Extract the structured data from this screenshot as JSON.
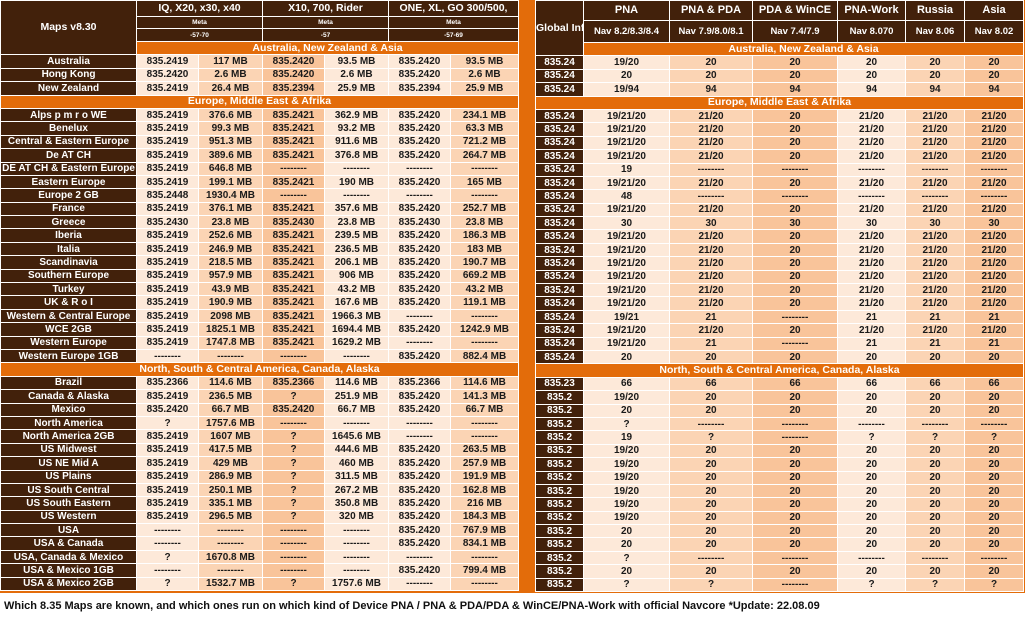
{
  "left": {
    "corner": "Maps v8.30",
    "groups": [
      {
        "title": "IQ, X20, x30, x40",
        "meta": "Meta",
        "ver": "-57-70"
      },
      {
        "title": "X10, 700, Rider",
        "meta": "Meta",
        "ver": "-57"
      },
      {
        "title": "ONE, XL, GO 300/500,",
        "meta": "Meta",
        "ver": "-57-69"
      }
    ],
    "sections": [
      {
        "title": "Australia, New Zealand & Asia",
        "rows": [
          [
            "Australia",
            "835.2419",
            "117 MB",
            "835.2420",
            "93.5 MB",
            "835.2420",
            "93.5 MB"
          ],
          [
            "Hong Kong",
            "835.2420",
            "2.6 MB",
            "835.2420",
            "2.6 MB",
            "835.2420",
            "2.6 MB"
          ],
          [
            "New Zealand",
            "835.2419",
            "26.4 MB",
            "835.2394",
            "25.9 MB",
            "835.2394",
            "25.9 MB"
          ]
        ]
      },
      {
        "title": "Europe, Middle East & Afrika",
        "rows": [
          [
            "Alps p m r o WE",
            "835.2419",
            "376.6 MB",
            "835.2421",
            "362.9 MB",
            "835.2420",
            "234.1 MB"
          ],
          [
            "Benelux",
            "835.2419",
            "99.3 MB",
            "835.2421",
            "93.2 MB",
            "835.2420",
            "63.3 MB"
          ],
          [
            "Central & Eastern Europe",
            "835.2419",
            "951.3 MB",
            "835.2421",
            "911.6 MB",
            "835.2420",
            "721.2 MB"
          ],
          [
            "De AT CH",
            "835.2419",
            "389.6 MB",
            "835.2421",
            "376.8 MB",
            "835.2420",
            "264.7 MB"
          ],
          [
            "DE AT CH & Eastern Europe",
            "835.2419",
            "646.8 MB",
            "--------",
            "--------",
            "--------",
            "--------"
          ],
          [
            "Eastern Europe",
            "835.2419",
            "199.1 MB",
            "835.2421",
            "190 MB",
            "835.2420",
            "165 MB"
          ],
          [
            "Europe 2 GB",
            "835.2448",
            "1930.4 MB",
            "--------",
            "--------",
            "--------",
            "--------"
          ],
          [
            "France",
            "835.2419",
            "376.1 MB",
            "835.2421",
            "357.6 MB",
            "835.2420",
            "252.7 MB"
          ],
          [
            "Greece",
            "835.2430",
            "23.8 MB",
            "835.2430",
            "23.8 MB",
            "835.2430",
            "23.8 MB"
          ],
          [
            "Iberia",
            "835.2419",
            "252.6 MB",
            "835.2421",
            "239.5 MB",
            "835.2420",
            "186.3 MB"
          ],
          [
            "Italia",
            "835.2419",
            "246.9 MB",
            "835.2421",
            "236.5 MB",
            "835.2420",
            "183 MB"
          ],
          [
            "Scandinavia",
            "835.2419",
            "218.5 MB",
            "835.2421",
            "206.1 MB",
            "835.2420",
            "190.7 MB"
          ],
          [
            "Southern Europe",
            "835.2419",
            "957.9 MB",
            "835.2421",
            "906 MB",
            "835.2420",
            "669.2 MB"
          ],
          [
            "Turkey",
            "835.2419",
            "43.9 MB",
            "835.2421",
            "43.2 MB",
            "835.2420",
            "43.2 MB"
          ],
          [
            "UK & R o I",
            "835.2419",
            "190.9 MB",
            "835.2421",
            "167.6 MB",
            "835.2420",
            "119.1 MB"
          ],
          [
            "Western & Central Europe",
            "835.2419",
            "2098 MB",
            "835.2421",
            "1966.3 MB",
            "--------",
            "--------"
          ],
          [
            "WCE 2GB",
            "835.2419",
            "1825.1 MB",
            "835.2421",
            "1694.4 MB",
            "835.2420",
            "1242.9 MB"
          ],
          [
            "Western Europe",
            "835.2419",
            "1747.8 MB",
            "835.2421",
            "1629.2 MB",
            "--------",
            "--------"
          ],
          [
            "Western Europe 1GB",
            "--------",
            "--------",
            "--------",
            "--------",
            "835.2420",
            "882.4 MB"
          ]
        ]
      },
      {
        "title": "North, South & Central America, Canada, Alaska",
        "rows": [
          [
            "Brazil",
            "835.2366",
            "114.6 MB",
            "835.2366",
            "114.6 MB",
            "835.2366",
            "114.6 MB"
          ],
          [
            "Canada & Alaska",
            "835.2419",
            "236.5 MB",
            "?",
            "251.9 MB",
            "835.2420",
            "141.3 MB"
          ],
          [
            "Mexico",
            "835.2420",
            "66.7 MB",
            "835.2420",
            "66.7 MB",
            "835.2420",
            "66.7 MB"
          ],
          [
            "North America",
            "?",
            "1757.6 MB",
            "--------",
            "--------",
            "--------",
            "--------"
          ],
          [
            "North America 2GB",
            "835.2419",
            "1607 MB",
            "?",
            "1645.6 MB",
            "--------",
            "--------"
          ],
          [
            "US Midwest",
            "835.2419",
            "417.5 MB",
            "?",
            "444.6 MB",
            "835.2420",
            "263.5 MB"
          ],
          [
            "US NE Mid A",
            "835.2419",
            "429 MB",
            "?",
            "460 MB",
            "835.2420",
            "257.9 MB"
          ],
          [
            "US Plains",
            "835.2419",
            "286.9 MB",
            "?",
            "311.5 MB",
            "835.2420",
            "191.9 MB"
          ],
          [
            "US South Central",
            "835.2419",
            "250.1 MB",
            "?",
            "267.2 MB",
            "835.2420",
            "162.8 MB"
          ],
          [
            "US South Eastern",
            "835.2419",
            "335.1 MB",
            "?",
            "350.8 MB",
            "835.2420",
            "216 MB"
          ],
          [
            "US Western",
            "835.2419",
            "296.5 MB",
            "?",
            "320 MB",
            "835.2420",
            "184.3 MB"
          ],
          [
            "USA",
            "--------",
            "--------",
            "--------",
            "--------",
            "835.2420",
            "767.9 MB"
          ],
          [
            "USA & Canada",
            "--------",
            "--------",
            "--------",
            "--------",
            "835.2420",
            "834.1 MB"
          ],
          [
            "USA, Canada & Mexico",
            "?",
            "1670.8 MB",
            "--------",
            "--------",
            "--------",
            "--------"
          ],
          [
            "USA & Mexico 1GB",
            "--------",
            "--------",
            "--------",
            "--------",
            "835.2420",
            "799.4 MB"
          ],
          [
            "USA & Mexico 2GB",
            "?",
            "1532.7 MB",
            "?",
            "1757.6 MB",
            "--------",
            "--------"
          ]
        ]
      }
    ]
  },
  "right": {
    "corner": "Global Info",
    "columns": [
      {
        "title": "PNA",
        "nav": "Nav 8.2/8.3/8.4"
      },
      {
        "title": "PNA & PDA",
        "nav": "Nav 7.9/8.0/8.1"
      },
      {
        "title": "PDA & WinCE",
        "nav": "Nav 7.4/7.9"
      },
      {
        "title": "PNA-Work",
        "nav": "Nav 8.070"
      },
      {
        "title": "Russia",
        "nav": "Nav 8.06"
      },
      {
        "title": "Asia",
        "nav": "Nav 8.02"
      }
    ],
    "sections": [
      {
        "title": "Australia, New Zealand & Asia",
        "rows": [
          [
            "835.24",
            "19/20",
            "20",
            "20",
            "20",
            "20",
            "20"
          ],
          [
            "835.24",
            "20",
            "20",
            "20",
            "20",
            "20",
            "20"
          ],
          [
            "835.24",
            "19/94",
            "94",
            "94",
            "94",
            "94",
            "94"
          ]
        ]
      },
      {
        "title": "Europe, Middle East & Afrika",
        "rows": [
          [
            "835.24",
            "19/21/20",
            "21/20",
            "20",
            "21/20",
            "21/20",
            "21/20"
          ],
          [
            "835.24",
            "19/21/20",
            "21/20",
            "20",
            "21/20",
            "21/20",
            "21/20"
          ],
          [
            "835.24",
            "19/21/20",
            "21/20",
            "20",
            "21/20",
            "21/20",
            "21/20"
          ],
          [
            "835.24",
            "19/21/20",
            "21/20",
            "20",
            "21/20",
            "21/20",
            "21/20"
          ],
          [
            "835.24",
            "19",
            "--------",
            "--------",
            "--------",
            "--------",
            "--------"
          ],
          [
            "835.24",
            "19/21/20",
            "21/20",
            "20",
            "21/20",
            "21/20",
            "21/20"
          ],
          [
            "835.24",
            "48",
            "--------",
            "--------",
            "--------",
            "--------",
            "--------"
          ],
          [
            "835.24",
            "19/21/20",
            "21/20",
            "20",
            "21/20",
            "21/20",
            "21/20"
          ],
          [
            "835.24",
            "30",
            "30",
            "30",
            "30",
            "30",
            "30"
          ],
          [
            "835.24",
            "19/21/20",
            "21/20",
            "20",
            "21/20",
            "21/20",
            "21/20"
          ],
          [
            "835.24",
            "19/21/20",
            "21/20",
            "20",
            "21/20",
            "21/20",
            "21/20"
          ],
          [
            "835.24",
            "19/21/20",
            "21/20",
            "20",
            "21/20",
            "21/20",
            "21/20"
          ],
          [
            "835.24",
            "19/21/20",
            "21/20",
            "20",
            "21/20",
            "21/20",
            "21/20"
          ],
          [
            "835.24",
            "19/21/20",
            "21/20",
            "20",
            "21/20",
            "21/20",
            "21/20"
          ],
          [
            "835.24",
            "19/21/20",
            "21/20",
            "20",
            "21/20",
            "21/20",
            "21/20"
          ],
          [
            "835.24",
            "19/21",
            "21",
            "--------",
            "21",
            "21",
            "21"
          ],
          [
            "835.24",
            "19/21/20",
            "21/20",
            "20",
            "21/20",
            "21/20",
            "21/20"
          ],
          [
            "835.24",
            "19/21/20",
            "21",
            "--------",
            "21",
            "21",
            "21"
          ],
          [
            "835.24",
            "20",
            "20",
            "20",
            "20",
            "20",
            "20"
          ]
        ]
      },
      {
        "title": "North, South & Central America, Canada, Alaska",
        "rows": [
          [
            "835.23",
            "66",
            "66",
            "66",
            "66",
            "66",
            "66"
          ],
          [
            "835.2",
            "19/20",
            "20",
            "20",
            "20",
            "20",
            "20"
          ],
          [
            "835.2",
            "20",
            "20",
            "20",
            "20",
            "20",
            "20"
          ],
          [
            "835.2",
            "?",
            "--------",
            "--------",
            "--------",
            "--------",
            "--------"
          ],
          [
            "835.2",
            "19",
            "?",
            "--------",
            "?",
            "?",
            "?"
          ],
          [
            "835.2",
            "19/20",
            "20",
            "20",
            "20",
            "20",
            "20"
          ],
          [
            "835.2",
            "19/20",
            "20",
            "20",
            "20",
            "20",
            "20"
          ],
          [
            "835.2",
            "19/20",
            "20",
            "20",
            "20",
            "20",
            "20"
          ],
          [
            "835.2",
            "19/20",
            "20",
            "20",
            "20",
            "20",
            "20"
          ],
          [
            "835.2",
            "19/20",
            "20",
            "20",
            "20",
            "20",
            "20"
          ],
          [
            "835.2",
            "19/20",
            "20",
            "20",
            "20",
            "20",
            "20"
          ],
          [
            "835.2",
            "20",
            "20",
            "20",
            "20",
            "20",
            "20"
          ],
          [
            "835.2",
            "20",
            "20",
            "20",
            "20",
            "20",
            "20"
          ],
          [
            "835.2",
            "?",
            "--------",
            "--------",
            "--------",
            "--------",
            "--------"
          ],
          [
            "835.2",
            "20",
            "20",
            "20",
            "20",
            "20",
            "20"
          ],
          [
            "835.2",
            "?",
            "?",
            "--------",
            "?",
            "?",
            "?"
          ]
        ]
      }
    ]
  },
  "footer": "Which 8.35 Maps are known, and which ones run on which kind of Device PNA / PNA & PDA/PDA & WinCE/PNA-Work with official Navcore *Update: 22.08.09",
  "colors": {
    "dark_brown": "#42210b",
    "orange": "#e36c0a",
    "light": "#fde9d9",
    "mid": "#fbd4b4",
    "dark": "#f9c49a"
  }
}
